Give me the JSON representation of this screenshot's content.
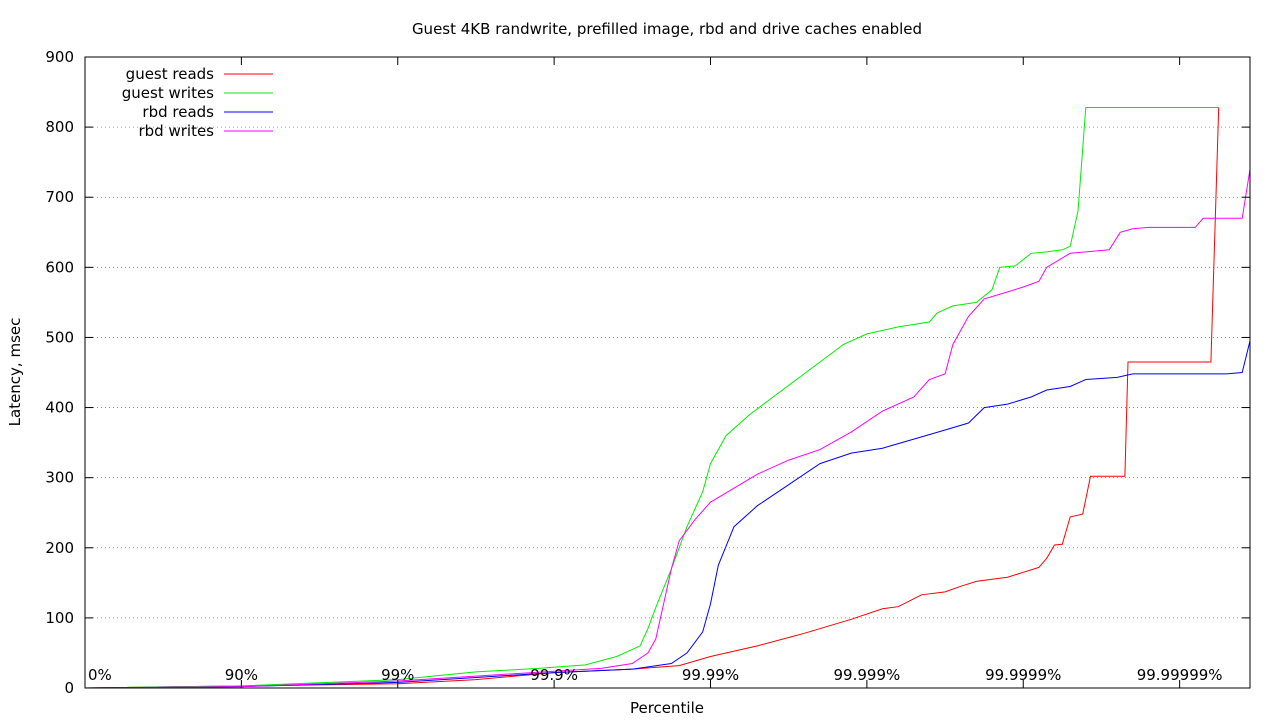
{
  "chart_data": {
    "type": "line",
    "title": "Guest 4KB randwrite, prefilled image, rbd and drive caches enabled",
    "xlabel": "Percentile",
    "ylabel": "Latency, msec",
    "x_scale": "nines",
    "xlim": [
      0,
      7.45
    ],
    "ylim": [
      0,
      900
    ],
    "x_ticks": [
      {
        "value": 0,
        "label": "0%"
      },
      {
        "value": 1,
        "label": "90%"
      },
      {
        "value": 2,
        "label": "99%"
      },
      {
        "value": 3,
        "label": "99.9%"
      },
      {
        "value": 4,
        "label": "99.99%"
      },
      {
        "value": 5,
        "label": "99.999%"
      },
      {
        "value": 6,
        "label": "99.9999%"
      },
      {
        "value": 7,
        "label": "99.99999%"
      }
    ],
    "y_ticks": [
      0,
      100,
      200,
      300,
      400,
      500,
      600,
      700,
      800,
      900
    ],
    "grid": {
      "horizontal": true,
      "vertical": false,
      "style": "dotted"
    },
    "legend_position": "top-left",
    "series": [
      {
        "name": "guest reads",
        "color": "#ff0000",
        "points": [
          [
            0,
            0
          ],
          [
            1,
            3
          ],
          [
            2,
            6
          ],
          [
            2.5,
            12
          ],
          [
            3,
            22
          ],
          [
            3.5,
            27
          ],
          [
            3.8,
            32
          ],
          [
            4,
            45
          ],
          [
            4.3,
            60
          ],
          [
            4.6,
            78
          ],
          [
            4.9,
            98
          ],
          [
            5.1,
            113
          ],
          [
            5.2,
            116
          ],
          [
            5.35,
            133
          ],
          [
            5.5,
            137
          ],
          [
            5.6,
            145
          ],
          [
            5.7,
            152
          ],
          [
            5.8,
            155
          ],
          [
            5.9,
            158
          ],
          [
            6.0,
            165
          ],
          [
            6.1,
            172
          ],
          [
            6.15,
            185
          ],
          [
            6.2,
            204
          ],
          [
            6.25,
            205
          ],
          [
            6.3,
            244
          ],
          [
            6.38,
            248
          ],
          [
            6.43,
            302
          ],
          [
            6.65,
            302
          ],
          [
            6.67,
            465
          ],
          [
            6.7,
            465
          ],
          [
            7.2,
            465
          ],
          [
            7.25,
            828
          ]
        ]
      },
      {
        "name": "guest writes",
        "color": "#00ee00",
        "points": [
          [
            0,
            0
          ],
          [
            1,
            3
          ],
          [
            2,
            12
          ],
          [
            2.5,
            23
          ],
          [
            2.9,
            28
          ],
          [
            3.2,
            33
          ],
          [
            3.4,
            45
          ],
          [
            3.55,
            60
          ],
          [
            3.6,
            85
          ],
          [
            3.65,
            115
          ],
          [
            3.75,
            170
          ],
          [
            3.85,
            230
          ],
          [
            3.95,
            280
          ],
          [
            4,
            320
          ],
          [
            4.1,
            360
          ],
          [
            4.25,
            390
          ],
          [
            4.4,
            415
          ],
          [
            4.55,
            440
          ],
          [
            4.7,
            465
          ],
          [
            4.85,
            490
          ],
          [
            5,
            505
          ],
          [
            5.2,
            515
          ],
          [
            5.4,
            522
          ],
          [
            5.45,
            535
          ],
          [
            5.55,
            545
          ],
          [
            5.7,
            550
          ],
          [
            5.8,
            568
          ],
          [
            5.85,
            600
          ],
          [
            5.95,
            602
          ],
          [
            6.05,
            620
          ],
          [
            6.15,
            622
          ],
          [
            6.25,
            625
          ],
          [
            6.3,
            630
          ],
          [
            6.35,
            680
          ],
          [
            6.4,
            828
          ],
          [
            6.9,
            828
          ],
          [
            7.2,
            828
          ],
          [
            7.25,
            828
          ]
        ]
      },
      {
        "name": "rbd reads",
        "color": "#0000ff",
        "points": [
          [
            0,
            0
          ],
          [
            1,
            2
          ],
          [
            2,
            8
          ],
          [
            2.5,
            15
          ],
          [
            3,
            22
          ],
          [
            3.5,
            27
          ],
          [
            3.75,
            35
          ],
          [
            3.85,
            50
          ],
          [
            3.95,
            80
          ],
          [
            4.0,
            120
          ],
          [
            4.05,
            175
          ],
          [
            4.15,
            230
          ],
          [
            4.3,
            260
          ],
          [
            4.5,
            290
          ],
          [
            4.7,
            320
          ],
          [
            4.9,
            335
          ],
          [
            5.1,
            342
          ],
          [
            5.3,
            355
          ],
          [
            5.5,
            368
          ],
          [
            5.65,
            378
          ],
          [
            5.75,
            400
          ],
          [
            5.9,
            405
          ],
          [
            6.05,
            415
          ],
          [
            6.15,
            425
          ],
          [
            6.3,
            430
          ],
          [
            6.4,
            440
          ],
          [
            6.6,
            443
          ],
          [
            6.7,
            448
          ],
          [
            7.3,
            448
          ],
          [
            7.4,
            450
          ],
          [
            7.45,
            495
          ]
        ]
      },
      {
        "name": "rbd writes",
        "color": "#ff00ff",
        "points": [
          [
            0,
            0
          ],
          [
            1,
            2
          ],
          [
            2,
            10
          ],
          [
            2.5,
            17
          ],
          [
            3,
            24
          ],
          [
            3.3,
            28
          ],
          [
            3.5,
            35
          ],
          [
            3.6,
            50
          ],
          [
            3.65,
            70
          ],
          [
            3.7,
            120
          ],
          [
            3.75,
            170
          ],
          [
            3.8,
            210
          ],
          [
            3.9,
            240
          ],
          [
            4,
            265
          ],
          [
            4.15,
            285
          ],
          [
            4.3,
            305
          ],
          [
            4.5,
            325
          ],
          [
            4.7,
            340
          ],
          [
            4.9,
            365
          ],
          [
            5.1,
            395
          ],
          [
            5.3,
            415
          ],
          [
            5.4,
            440
          ],
          [
            5.5,
            448
          ],
          [
            5.55,
            490
          ],
          [
            5.65,
            530
          ],
          [
            5.75,
            555
          ],
          [
            5.9,
            565
          ],
          [
            6.0,
            572
          ],
          [
            6.1,
            580
          ],
          [
            6.15,
            600
          ],
          [
            6.3,
            620
          ],
          [
            6.4,
            622
          ],
          [
            6.55,
            625
          ],
          [
            6.62,
            650
          ],
          [
            6.7,
            655
          ],
          [
            6.8,
            657
          ],
          [
            7.1,
            657
          ],
          [
            7.15,
            670
          ],
          [
            7.4,
            670
          ],
          [
            7.45,
            740
          ]
        ]
      }
    ]
  }
}
